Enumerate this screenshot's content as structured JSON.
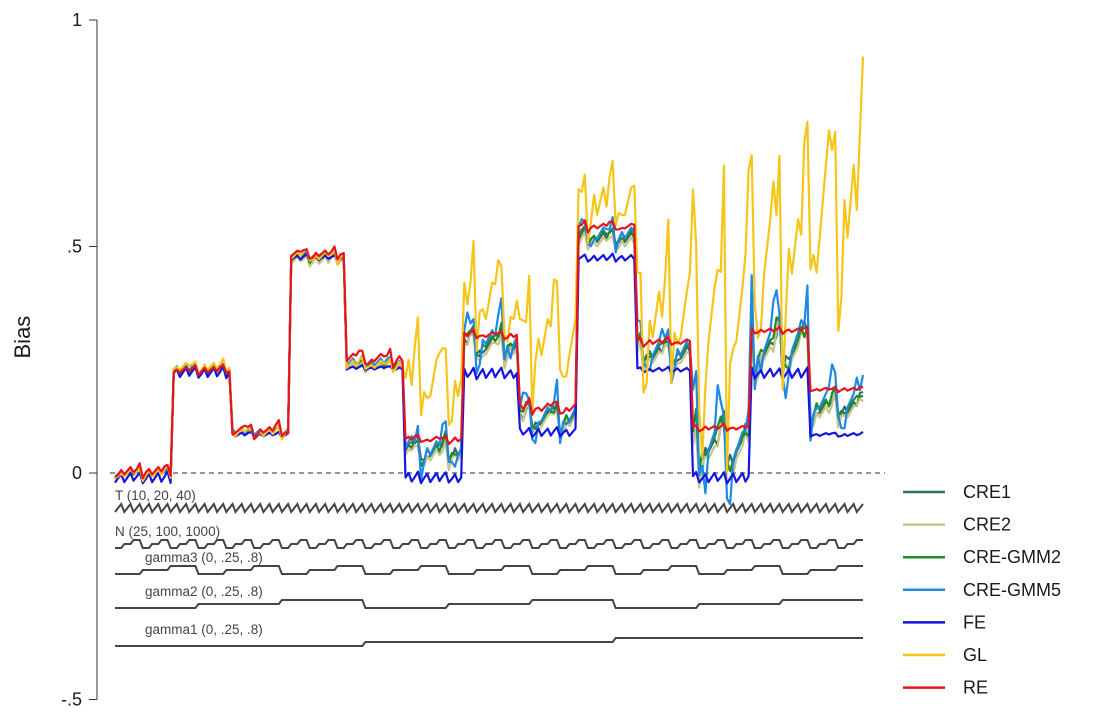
{
  "chart_data": {
    "type": "line",
    "ylabel": "Bias",
    "ylim": [
      -0.5,
      1
    ],
    "yticks": [
      {
        "value": 1,
        "label": "1"
      },
      {
        "value": 0.5,
        "label": ".5"
      },
      {
        "value": 0,
        "label": "0"
      },
      {
        "value": -0.5,
        "label": "-.5"
      }
    ],
    "reference_line": 0,
    "n_points": 243,
    "legend_position": "bottom-right",
    "design_factors": [
      {
        "name": "T",
        "label": "T (10, 20, 40)",
        "levels": [
          10,
          20,
          40
        ],
        "step": 1
      },
      {
        "name": "N",
        "label": "N (25, 100, 1000)",
        "levels": [
          25,
          100,
          1000
        ],
        "step": 3
      },
      {
        "name": "gamma3",
        "label": "gamma3 (0, .25, .8)",
        "levels": [
          0,
          0.25,
          0.8
        ],
        "step": 9
      },
      {
        "name": "gamma2",
        "label": "gamma2 (0, .25, .8)",
        "levels": [
          0,
          0.25,
          0.8
        ],
        "step": 27
      },
      {
        "name": "gamma1",
        "label": "gamma1 (0, .25, .8)",
        "levels": [
          0,
          0.25,
          0.8
        ],
        "step": 81
      }
    ],
    "series": [
      {
        "name": "CRE1",
        "color": "#2e6e6a",
        "block_means": [
          0,
          0.225,
          0.09,
          0.475,
          0.24,
          0.05,
          0.285,
          0.12,
          0.52,
          0.265,
          0.06,
          0.275,
          0.145
        ],
        "t_amp": [
          0.006,
          0.008,
          0.008,
          0.008,
          0.008,
          0.012,
          0.012,
          0.012,
          0.01,
          0.012,
          0.014,
          0.014,
          0.012
        ],
        "n_amp": [
          0.004,
          0.004,
          0.004,
          0.004,
          0.004,
          0.018,
          0.02,
          0.02,
          0.008,
          0.018,
          0.04,
          0.04,
          0.02
        ]
      },
      {
        "name": "CRE2",
        "color": "#c8c48a",
        "block_means": [
          0,
          0.225,
          0.09,
          0.47,
          0.235,
          0.04,
          0.275,
          0.115,
          0.51,
          0.255,
          0.045,
          0.265,
          0.135
        ],
        "t_amp": [
          0.006,
          0.008,
          0.008,
          0.008,
          0.008,
          0.012,
          0.012,
          0.012,
          0.01,
          0.012,
          0.014,
          0.014,
          0.012
        ],
        "n_amp": [
          0.004,
          0.004,
          0.004,
          0.004,
          0.004,
          0.015,
          0.02,
          0.02,
          0.008,
          0.018,
          0.04,
          0.04,
          0.02
        ]
      },
      {
        "name": "CRE-GMM2",
        "color": "#1f8a1f",
        "block_means": [
          0,
          0.228,
          0.092,
          0.478,
          0.242,
          0.052,
          0.29,
          0.125,
          0.525,
          0.27,
          0.065,
          0.28,
          0.15
        ],
        "t_amp": [
          0.006,
          0.008,
          0.008,
          0.008,
          0.008,
          0.012,
          0.012,
          0.012,
          0.01,
          0.012,
          0.014,
          0.014,
          0.012
        ],
        "n_amp": [
          0.004,
          0.004,
          0.004,
          0.004,
          0.004,
          0.018,
          0.02,
          0.02,
          0.008,
          0.018,
          0.04,
          0.04,
          0.02
        ]
      },
      {
        "name": "CRE-GMM5",
        "color": "#1e88e5",
        "block_means": [
          0,
          0.23,
          0.093,
          0.48,
          0.245,
          0.055,
          0.3,
          0.13,
          0.53,
          0.275,
          0.07,
          0.29,
          0.16
        ],
        "t_amp": [
          0.006,
          0.008,
          0.008,
          0.008,
          0.008,
          0.015,
          0.015,
          0.015,
          0.012,
          0.015,
          0.02,
          0.02,
          0.015
        ],
        "n_amp": [
          0.004,
          0.004,
          0.004,
          0.004,
          0.004,
          0.035,
          0.045,
          0.04,
          0.02,
          0.04,
          0.09,
          0.08,
          0.05
        ]
      },
      {
        "name": "FE",
        "color": "#1515e0",
        "block_means": [
          -0.01,
          0.222,
          0.085,
          0.475,
          0.232,
          -0.01,
          0.22,
          0.09,
          0.475,
          0.228,
          -0.01,
          0.22,
          0.085
        ],
        "t_amp": [
          0.01,
          0.01,
          0.004,
          0.005,
          0.003,
          0.01,
          0.01,
          0.008,
          0.006,
          0.004,
          0.01,
          0.01,
          0.003
        ],
        "n_amp": [
          0.002,
          0.002,
          0.002,
          0.002,
          0.002,
          0.002,
          0.002,
          0.002,
          0.002,
          0.002,
          0.002,
          0.002,
          0.002
        ]
      },
      {
        "name": "GL",
        "color": "#f5c518",
        "block_means": [
          0,
          0.235,
          0.09,
          0.48,
          0.24,
          0.21,
          0.38,
          0.3,
          0.6,
          0.35,
          0.35,
          0.5,
          0.6
        ],
        "t_amp": [
          0.008,
          0.008,
          0.008,
          0.008,
          0.008,
          0.04,
          0.04,
          0.04,
          0.03,
          0.05,
          0.06,
          0.06,
          0.08
        ],
        "n_amp": [
          0.006,
          0.006,
          0.006,
          0.006,
          0.006,
          0.06,
          0.06,
          0.08,
          0.04,
          0.1,
          0.2,
          0.16,
          0.15
        ]
      },
      {
        "name": "RE",
        "color": "#e8141c",
        "block_means": [
          0.005,
          0.228,
          0.095,
          0.485,
          0.255,
          0.075,
          0.305,
          0.145,
          0.545,
          0.29,
          0.1,
          0.315,
          0.185
        ],
        "t_amp": [
          0.008,
          0.006,
          0.006,
          0.006,
          0.008,
          0.005,
          0.005,
          0.008,
          0.005,
          0.005,
          0.004,
          0.004,
          0.003
        ],
        "n_amp": [
          0.006,
          0.004,
          0.01,
          0.006,
          0.01,
          0.004,
          0.004,
          0.008,
          0.006,
          0.004,
          0.003,
          0.003,
          0.002
        ]
      }
    ]
  }
}
